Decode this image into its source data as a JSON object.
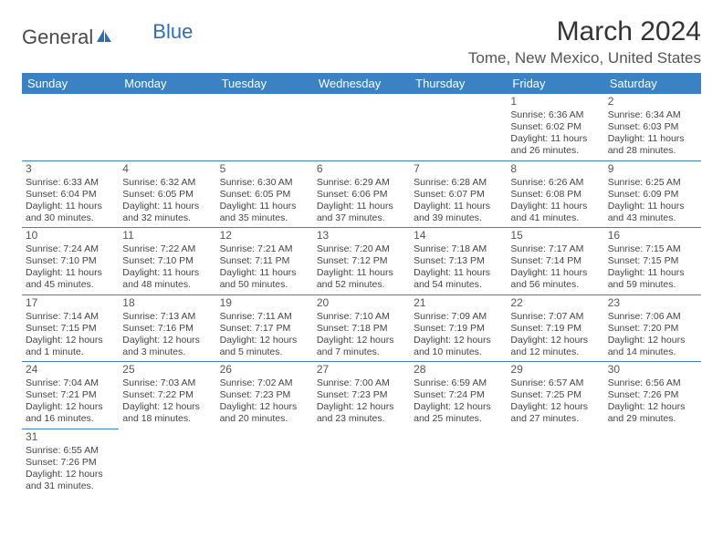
{
  "logo": {
    "text1": "General",
    "text2": "Blue"
  },
  "title": "March 2024",
  "location": "Tome, New Mexico, United States",
  "colors": {
    "header_bg": "#3a82c4",
    "border": "#3a82c4",
    "text": "#444444"
  },
  "dayHeaders": [
    "Sunday",
    "Monday",
    "Tuesday",
    "Wednesday",
    "Thursday",
    "Friday",
    "Saturday"
  ],
  "weeks": [
    [
      null,
      null,
      null,
      null,
      null,
      {
        "n": "1",
        "sr": "Sunrise: 6:36 AM",
        "ss": "Sunset: 6:02 PM",
        "dl": "Daylight: 11 hours and 26 minutes."
      },
      {
        "n": "2",
        "sr": "Sunrise: 6:34 AM",
        "ss": "Sunset: 6:03 PM",
        "dl": "Daylight: 11 hours and 28 minutes."
      }
    ],
    [
      {
        "n": "3",
        "sr": "Sunrise: 6:33 AM",
        "ss": "Sunset: 6:04 PM",
        "dl": "Daylight: 11 hours and 30 minutes."
      },
      {
        "n": "4",
        "sr": "Sunrise: 6:32 AM",
        "ss": "Sunset: 6:05 PM",
        "dl": "Daylight: 11 hours and 32 minutes."
      },
      {
        "n": "5",
        "sr": "Sunrise: 6:30 AM",
        "ss": "Sunset: 6:05 PM",
        "dl": "Daylight: 11 hours and 35 minutes."
      },
      {
        "n": "6",
        "sr": "Sunrise: 6:29 AM",
        "ss": "Sunset: 6:06 PM",
        "dl": "Daylight: 11 hours and 37 minutes."
      },
      {
        "n": "7",
        "sr": "Sunrise: 6:28 AM",
        "ss": "Sunset: 6:07 PM",
        "dl": "Daylight: 11 hours and 39 minutes."
      },
      {
        "n": "8",
        "sr": "Sunrise: 6:26 AM",
        "ss": "Sunset: 6:08 PM",
        "dl": "Daylight: 11 hours and 41 minutes."
      },
      {
        "n": "9",
        "sr": "Sunrise: 6:25 AM",
        "ss": "Sunset: 6:09 PM",
        "dl": "Daylight: 11 hours and 43 minutes."
      }
    ],
    [
      {
        "n": "10",
        "sr": "Sunrise: 7:24 AM",
        "ss": "Sunset: 7:10 PM",
        "dl": "Daylight: 11 hours and 45 minutes."
      },
      {
        "n": "11",
        "sr": "Sunrise: 7:22 AM",
        "ss": "Sunset: 7:10 PM",
        "dl": "Daylight: 11 hours and 48 minutes."
      },
      {
        "n": "12",
        "sr": "Sunrise: 7:21 AM",
        "ss": "Sunset: 7:11 PM",
        "dl": "Daylight: 11 hours and 50 minutes."
      },
      {
        "n": "13",
        "sr": "Sunrise: 7:20 AM",
        "ss": "Sunset: 7:12 PM",
        "dl": "Daylight: 11 hours and 52 minutes."
      },
      {
        "n": "14",
        "sr": "Sunrise: 7:18 AM",
        "ss": "Sunset: 7:13 PM",
        "dl": "Daylight: 11 hours and 54 minutes."
      },
      {
        "n": "15",
        "sr": "Sunrise: 7:17 AM",
        "ss": "Sunset: 7:14 PM",
        "dl": "Daylight: 11 hours and 56 minutes."
      },
      {
        "n": "16",
        "sr": "Sunrise: 7:15 AM",
        "ss": "Sunset: 7:15 PM",
        "dl": "Daylight: 11 hours and 59 minutes."
      }
    ],
    [
      {
        "n": "17",
        "sr": "Sunrise: 7:14 AM",
        "ss": "Sunset: 7:15 PM",
        "dl": "Daylight: 12 hours and 1 minute."
      },
      {
        "n": "18",
        "sr": "Sunrise: 7:13 AM",
        "ss": "Sunset: 7:16 PM",
        "dl": "Daylight: 12 hours and 3 minutes."
      },
      {
        "n": "19",
        "sr": "Sunrise: 7:11 AM",
        "ss": "Sunset: 7:17 PM",
        "dl": "Daylight: 12 hours and 5 minutes."
      },
      {
        "n": "20",
        "sr": "Sunrise: 7:10 AM",
        "ss": "Sunset: 7:18 PM",
        "dl": "Daylight: 12 hours and 7 minutes."
      },
      {
        "n": "21",
        "sr": "Sunrise: 7:09 AM",
        "ss": "Sunset: 7:19 PM",
        "dl": "Daylight: 12 hours and 10 minutes."
      },
      {
        "n": "22",
        "sr": "Sunrise: 7:07 AM",
        "ss": "Sunset: 7:19 PM",
        "dl": "Daylight: 12 hours and 12 minutes."
      },
      {
        "n": "23",
        "sr": "Sunrise: 7:06 AM",
        "ss": "Sunset: 7:20 PM",
        "dl": "Daylight: 12 hours and 14 minutes."
      }
    ],
    [
      {
        "n": "24",
        "sr": "Sunrise: 7:04 AM",
        "ss": "Sunset: 7:21 PM",
        "dl": "Daylight: 12 hours and 16 minutes."
      },
      {
        "n": "25",
        "sr": "Sunrise: 7:03 AM",
        "ss": "Sunset: 7:22 PM",
        "dl": "Daylight: 12 hours and 18 minutes."
      },
      {
        "n": "26",
        "sr": "Sunrise: 7:02 AM",
        "ss": "Sunset: 7:23 PM",
        "dl": "Daylight: 12 hours and 20 minutes."
      },
      {
        "n": "27",
        "sr": "Sunrise: 7:00 AM",
        "ss": "Sunset: 7:23 PM",
        "dl": "Daylight: 12 hours and 23 minutes."
      },
      {
        "n": "28",
        "sr": "Sunrise: 6:59 AM",
        "ss": "Sunset: 7:24 PM",
        "dl": "Daylight: 12 hours and 25 minutes."
      },
      {
        "n": "29",
        "sr": "Sunrise: 6:57 AM",
        "ss": "Sunset: 7:25 PM",
        "dl": "Daylight: 12 hours and 27 minutes."
      },
      {
        "n": "30",
        "sr": "Sunrise: 6:56 AM",
        "ss": "Sunset: 7:26 PM",
        "dl": "Daylight: 12 hours and 29 minutes."
      }
    ],
    [
      {
        "n": "31",
        "sr": "Sunrise: 6:55 AM",
        "ss": "Sunset: 7:26 PM",
        "dl": "Daylight: 12 hours and 31 minutes."
      },
      null,
      null,
      null,
      null,
      null,
      null
    ]
  ]
}
